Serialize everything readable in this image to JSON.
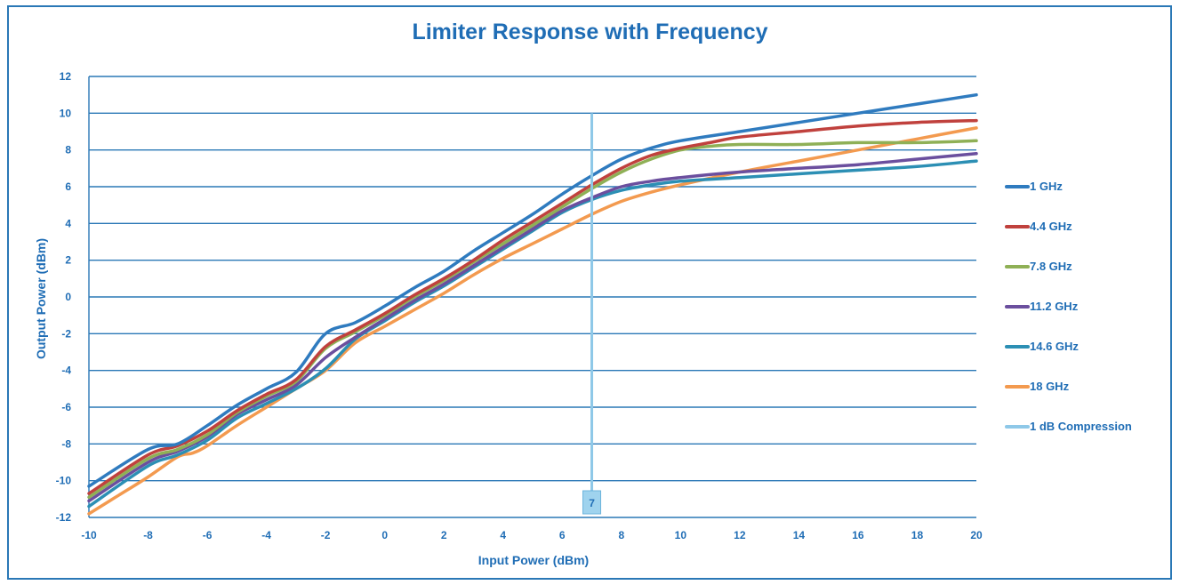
{
  "chart_data": {
    "type": "line",
    "title": "Limiter Response with Frequency",
    "xlabel": "Input Power (dBm)",
    "ylabel": "Output Power (dBm)",
    "xlim": [
      -10,
      20
    ],
    "ylim": [
      -12,
      12
    ],
    "xticks": [
      "-10",
      "-8",
      "-6",
      "-4",
      "-2",
      "0",
      "2",
      "4",
      "6",
      "8",
      "10",
      "12",
      "14",
      "16",
      "18",
      "20"
    ],
    "yticks": [
      "12",
      "10",
      "8",
      "6",
      "4",
      "2",
      "0",
      "-2",
      "-4",
      "-6",
      "-8",
      "-10",
      "-12"
    ],
    "grid": "horizontal",
    "legend_position": "right",
    "series": [
      {
        "name": "1 GHz",
        "color": "#2f7bbf",
        "x": [
          -10,
          -8,
          -7,
          -6,
          -5,
          -4,
          -3,
          -2,
          -1,
          0,
          1,
          2,
          3,
          4,
          5,
          6,
          7,
          8,
          9,
          10,
          12,
          14,
          16,
          18,
          20
        ],
        "y": [
          -10.3,
          -8.3,
          -8.0,
          -7.0,
          -5.9,
          -5.0,
          -4.1,
          -2.0,
          -1.4,
          -0.5,
          0.5,
          1.4,
          2.5,
          3.5,
          4.5,
          5.6,
          6.6,
          7.5,
          8.1,
          8.5,
          9.0,
          9.5,
          10.0,
          10.5,
          11.0
        ]
      },
      {
        "name": "4.4 GHz",
        "color": "#c0413d",
        "x": [
          -10,
          -8,
          -7,
          -6,
          -5,
          -4,
          -3,
          -2,
          -1,
          0,
          1,
          2,
          3,
          4,
          5,
          6,
          7,
          8,
          9,
          10,
          11,
          12,
          14,
          16,
          18,
          20
        ],
        "y": [
          -10.7,
          -8.6,
          -8.1,
          -7.3,
          -6.2,
          -5.3,
          -4.5,
          -2.7,
          -1.8,
          -0.9,
          0.1,
          1.0,
          2.0,
          3.1,
          4.1,
          5.1,
          6.1,
          7.0,
          7.7,
          8.1,
          8.4,
          8.7,
          9.0,
          9.3,
          9.5,
          9.6
        ]
      },
      {
        "name": "7.8 GHz",
        "color": "#8fb056",
        "x": [
          -10,
          -8,
          -7,
          -6,
          -5,
          -4,
          -3,
          -2,
          -1,
          0,
          1,
          2,
          3,
          4,
          5,
          6,
          7,
          8,
          9,
          10,
          11,
          12,
          14,
          16,
          18,
          20
        ],
        "y": [
          -10.9,
          -8.8,
          -8.3,
          -7.5,
          -6.3,
          -5.4,
          -4.6,
          -2.8,
          -1.9,
          -1.0,
          0.0,
          0.9,
          1.9,
          2.9,
          3.9,
          4.9,
          5.9,
          6.8,
          7.5,
          8.0,
          8.2,
          8.3,
          8.3,
          8.4,
          8.4,
          8.5
        ]
      },
      {
        "name": "11.2 GHz",
        "color": "#6b4f9e",
        "x": [
          -10,
          -8,
          -7,
          -6,
          -5,
          -4,
          -3,
          -2,
          -1,
          0,
          1,
          2,
          3,
          4,
          5,
          6,
          7,
          8,
          9,
          10,
          12,
          14,
          16,
          18,
          20
        ],
        "y": [
          -11.1,
          -9.0,
          -8.4,
          -7.6,
          -6.4,
          -5.6,
          -4.8,
          -3.3,
          -2.2,
          -1.2,
          -0.2,
          0.7,
          1.7,
          2.7,
          3.7,
          4.7,
          5.4,
          6.0,
          6.3,
          6.5,
          6.8,
          7.0,
          7.2,
          7.5,
          7.8
        ]
      },
      {
        "name": "14.6 GHz",
        "color": "#2c8fb4",
        "x": [
          -10,
          -8,
          -7,
          -6,
          -5,
          -4,
          -3,
          -2,
          -1,
          0,
          1,
          2,
          3,
          4,
          5,
          6,
          7,
          8,
          9,
          10,
          12,
          14,
          16,
          18,
          20
        ],
        "y": [
          -11.4,
          -9.2,
          -8.6,
          -7.8,
          -6.6,
          -5.8,
          -5.0,
          -3.9,
          -2.3,
          -1.3,
          -0.3,
          0.6,
          1.6,
          2.6,
          3.6,
          4.6,
          5.3,
          5.8,
          6.1,
          6.3,
          6.5,
          6.7,
          6.9,
          7.1,
          7.4
        ]
      },
      {
        "name": "18 GHz",
        "color": "#f39a4f",
        "x": [
          -10,
          -9,
          -8,
          -7,
          -6.5,
          -6,
          -5,
          -4,
          -3,
          -2,
          -1,
          0,
          1,
          2,
          3,
          4,
          5,
          6,
          7,
          8,
          9,
          10,
          12,
          14,
          16,
          18,
          20
        ],
        "y": [
          -11.8,
          -10.8,
          -9.8,
          -8.7,
          -8.5,
          -8.1,
          -7.0,
          -6.0,
          -5.0,
          -4.0,
          -2.5,
          -1.6,
          -0.7,
          0.2,
          1.2,
          2.1,
          2.9,
          3.7,
          4.5,
          5.2,
          5.7,
          6.1,
          6.8,
          7.4,
          8.0,
          8.6,
          9.2
        ]
      }
    ],
    "reference_line": {
      "name": "1 dB Compression",
      "color": "#8ec8e8",
      "x": 7,
      "y_range": [
        -12,
        10
      ],
      "label": "7"
    }
  }
}
